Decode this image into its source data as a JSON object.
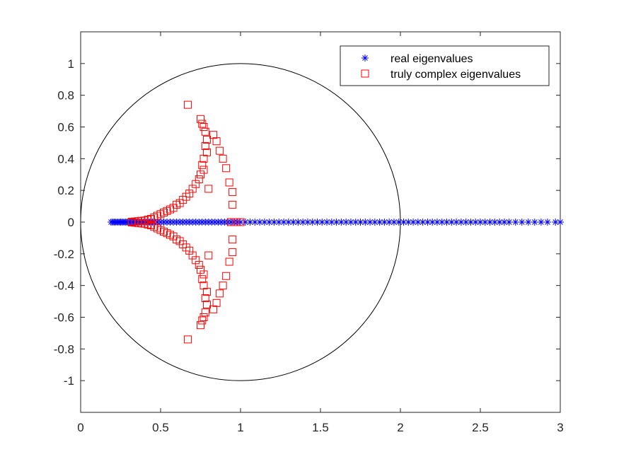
{
  "chart_data": {
    "type": "scatter",
    "title": "",
    "xlabel": "",
    "ylabel": "",
    "xlim": [
      0,
      3
    ],
    "ylim": [
      -1.2,
      1.2
    ],
    "xticks": [
      0,
      0.5,
      1,
      1.5,
      2,
      2.5,
      3
    ],
    "xtick_labels": [
      "0",
      "0.5",
      "1",
      "1.5",
      "2",
      "2.5",
      "3"
    ],
    "yticks": [
      1,
      0.8,
      0.6,
      0.4,
      0.2,
      0,
      -0.2,
      -0.4,
      -0.6,
      -0.8,
      -1
    ],
    "ytick_labels": [
      "1",
      "0.8",
      "0.6",
      "0.4",
      "0.2",
      "0",
      "-0.2",
      "-0.4",
      "-0.6",
      "-0.8",
      "-1"
    ],
    "grid": false,
    "legend_position": "top-right",
    "reference_circle": {
      "center": [
        1,
        0
      ],
      "radius": 1,
      "color": "#000000"
    },
    "series": [
      {
        "name": "real eigenvalues",
        "marker": "asterisk",
        "color": "#0000ff",
        "x": [
          0.19,
          0.2,
          0.21,
          0.22,
          0.23,
          0.24,
          0.25,
          0.26,
          0.27,
          0.28,
          0.29,
          0.3,
          0.31,
          0.32,
          0.33,
          0.34,
          0.35,
          0.36,
          0.37,
          0.38,
          0.39,
          0.4,
          0.41,
          0.42,
          0.43,
          0.44,
          0.45,
          0.46,
          0.48,
          0.5,
          0.52,
          0.54,
          0.56,
          0.58,
          0.6,
          0.62,
          0.64,
          0.66,
          0.68,
          0.7,
          0.72,
          0.74,
          0.76,
          0.78,
          0.8,
          0.82,
          0.84,
          0.86,
          0.88,
          0.9,
          0.92,
          0.94,
          0.96,
          0.98,
          1.0,
          1.03,
          1.06,
          1.09,
          1.12,
          1.15,
          1.18,
          1.21,
          1.24,
          1.27,
          1.3,
          1.33,
          1.36,
          1.39,
          1.42,
          1.45,
          1.48,
          1.51,
          1.54,
          1.57,
          1.6,
          1.63,
          1.66,
          1.69,
          1.72,
          1.75,
          1.78,
          1.81,
          1.84,
          1.87,
          1.9,
          1.93,
          1.96,
          1.99,
          2.02,
          2.05,
          2.08,
          2.11,
          2.14,
          2.17,
          2.2,
          2.23,
          2.26,
          2.29,
          2.32,
          2.35,
          2.38,
          2.41,
          2.44,
          2.47,
          2.5,
          2.53,
          2.56,
          2.59,
          2.62,
          2.65,
          2.68,
          2.72,
          2.76,
          2.8,
          2.84,
          2.88,
          2.92,
          2.97,
          3.0
        ],
        "y": [
          0,
          0,
          0,
          0,
          0,
          0,
          0,
          0,
          0,
          0,
          0,
          0,
          0,
          0,
          0,
          0,
          0,
          0,
          0,
          0,
          0,
          0,
          0,
          0,
          0,
          0,
          0,
          0,
          0,
          0,
          0,
          0,
          0,
          0,
          0,
          0,
          0,
          0,
          0,
          0,
          0,
          0,
          0,
          0,
          0,
          0,
          0,
          0,
          0,
          0,
          0,
          0,
          0,
          0,
          0,
          0,
          0,
          0,
          0,
          0,
          0,
          0,
          0,
          0,
          0,
          0,
          0,
          0,
          0,
          0,
          0,
          0,
          0,
          0,
          0,
          0,
          0,
          0,
          0,
          0,
          0,
          0,
          0,
          0,
          0,
          0,
          0,
          0,
          0,
          0,
          0,
          0,
          0,
          0,
          0,
          0,
          0,
          0,
          0,
          0,
          0,
          0,
          0,
          0,
          0,
          0,
          0,
          0,
          0,
          0,
          0,
          0,
          0,
          0,
          0,
          0,
          0,
          0,
          0
        ]
      },
      {
        "name": "truly complex eigenvalues",
        "marker": "square",
        "color": "#ff0000",
        "x": [
          0.67,
          0.67,
          0.75,
          0.75,
          0.76,
          0.76,
          0.77,
          0.77,
          0.78,
          0.78,
          0.79,
          0.79,
          0.78,
          0.78,
          0.79,
          0.79,
          0.77,
          0.77,
          0.76,
          0.76,
          0.77,
          0.77,
          0.75,
          0.75,
          0.74,
          0.74,
          0.72,
          0.72,
          0.7,
          0.7,
          0.68,
          0.68,
          0.66,
          0.66,
          0.64,
          0.64,
          0.62,
          0.62,
          0.6,
          0.6,
          0.58,
          0.58,
          0.56,
          0.56,
          0.54,
          0.54,
          0.52,
          0.52,
          0.5,
          0.5,
          0.48,
          0.48,
          0.46,
          0.46,
          0.44,
          0.44,
          0.42,
          0.42,
          0.4,
          0.4,
          0.38,
          0.38,
          0.36,
          0.36,
          0.34,
          0.34,
          0.32,
          0.32,
          0.83,
          0.83,
          0.85,
          0.85,
          0.87,
          0.87,
          0.89,
          0.89,
          0.91,
          0.91,
          0.93,
          0.93,
          0.95,
          0.95,
          0.95,
          0.95,
          0.8,
          0.8,
          0.94,
          0.97,
          1.0
        ],
        "y": [
          0.74,
          -0.74,
          0.65,
          -0.65,
          0.62,
          -0.62,
          0.6,
          -0.6,
          0.57,
          -0.57,
          0.52,
          -0.52,
          0.48,
          -0.48,
          0.44,
          -0.44,
          0.4,
          -0.4,
          0.36,
          -0.36,
          0.33,
          -0.33,
          0.3,
          -0.3,
          0.27,
          -0.27,
          0.24,
          -0.24,
          0.21,
          -0.21,
          0.18,
          -0.18,
          0.16,
          -0.16,
          0.14,
          -0.14,
          0.12,
          -0.12,
          0.11,
          -0.11,
          0.09,
          -0.09,
          0.08,
          -0.08,
          0.07,
          -0.07,
          0.06,
          -0.06,
          0.05,
          -0.05,
          0.04,
          -0.04,
          0.03,
          -0.03,
          0.02,
          -0.02,
          0.015,
          -0.015,
          0.01,
          -0.01,
          0.008,
          -0.008,
          0.006,
          -0.006,
          0.004,
          -0.004,
          0.002,
          -0.002,
          0.55,
          -0.55,
          0.51,
          -0.51,
          0.45,
          -0.45,
          0.4,
          -0.4,
          0.34,
          -0.34,
          0.25,
          -0.25,
          0.19,
          -0.19,
          0.11,
          -0.11,
          0.21,
          -0.21,
          0,
          0,
          0
        ]
      }
    ]
  }
}
